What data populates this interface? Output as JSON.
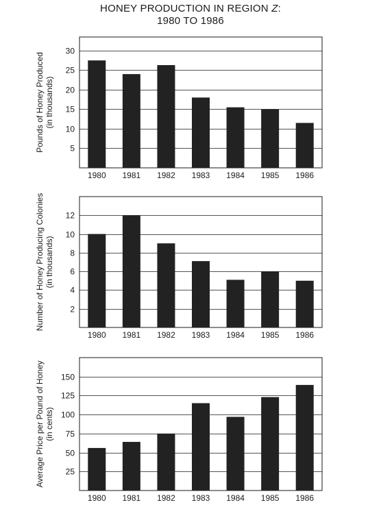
{
  "title_line1": "HONEY PRODUCTION IN REGION ",
  "title_region": "Z",
  "title_colon": ":",
  "title_line2": "1980 TO 1986",
  "colors": {
    "bar": "#222222",
    "axis": "#1a1a1a",
    "grid": "#1a1a1a"
  },
  "chart_data": [
    {
      "type": "bar",
      "ylabel": "Pounds of Honey Produced",
      "ylabel_sub": "(in thousands)",
      "categories": [
        "1980",
        "1981",
        "1982",
        "1983",
        "1984",
        "1985",
        "1986"
      ],
      "values": [
        27.5,
        24,
        26.3,
        18,
        15.5,
        15,
        11.5
      ],
      "yticks": [
        5,
        10,
        15,
        20,
        25,
        30
      ],
      "ylim": [
        0,
        33.5
      ],
      "grid": true
    },
    {
      "type": "bar",
      "ylabel": "Number of Honey Producing Colonies",
      "ylabel_sub": "(in thousands)",
      "categories": [
        "1980",
        "1981",
        "1982",
        "1983",
        "1984",
        "1985",
        "1986"
      ],
      "values": [
        10,
        12,
        9,
        7.1,
        5.1,
        6,
        5
      ],
      "yticks": [
        2,
        4,
        6,
        8,
        10,
        12
      ],
      "ylim": [
        0,
        14
      ],
      "grid": true
    },
    {
      "type": "bar",
      "ylabel": "Average Price per Pound of Honey",
      "ylabel_sub": "(in cents)",
      "categories": [
        "1980",
        "1981",
        "1982",
        "1983",
        "1984",
        "1985",
        "1986"
      ],
      "values": [
        56,
        64,
        75,
        115,
        97,
        123,
        139
      ],
      "yticks": [
        25,
        50,
        75,
        100,
        125,
        150
      ],
      "ylim": [
        0,
        175
      ],
      "grid": true
    }
  ]
}
